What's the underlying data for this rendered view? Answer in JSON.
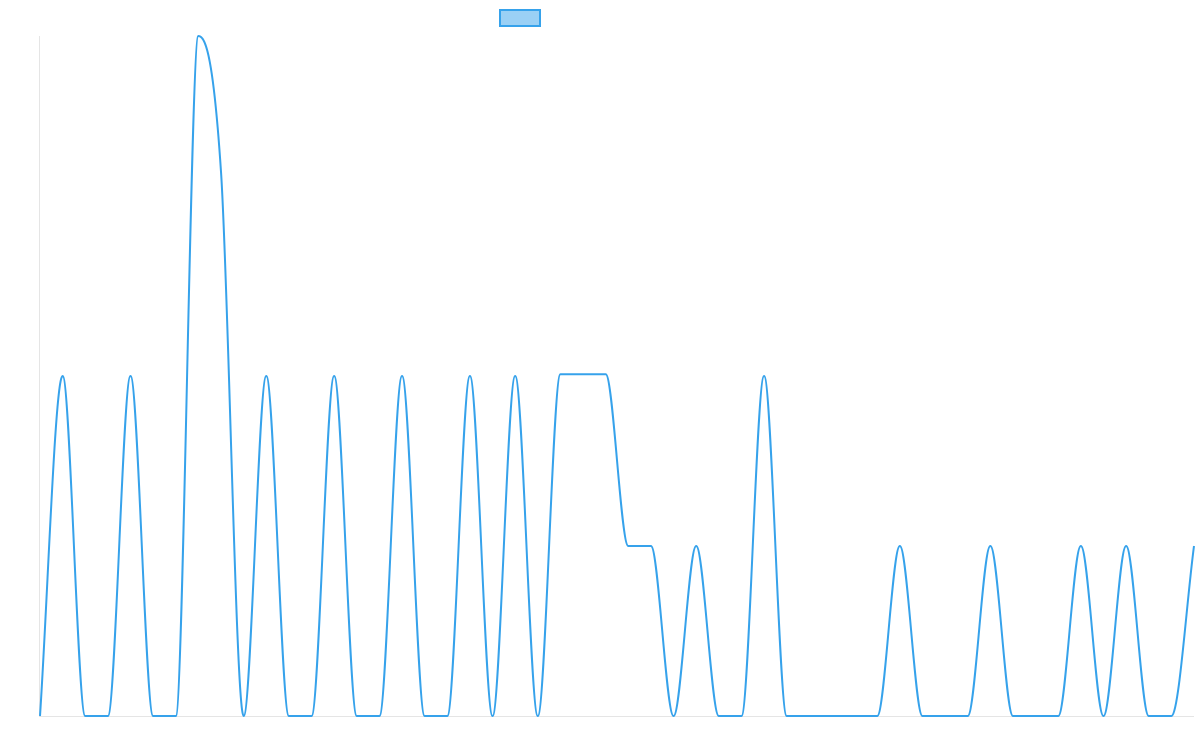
{
  "chart_data": {
    "type": "line",
    "title": "",
    "xlabel": "",
    "ylabel": "",
    "grid": false,
    "legend": {
      "placement": "top-center",
      "entries": [
        {
          "label": ""
        }
      ]
    },
    "ylim": [
      0,
      4
    ],
    "x": [
      0,
      1,
      2,
      3,
      4,
      5,
      6,
      7,
      8,
      9,
      10,
      11,
      12,
      13,
      14,
      15,
      16,
      17,
      18,
      19,
      20,
      21,
      22,
      23,
      24,
      25,
      26,
      27,
      28,
      29,
      30,
      31,
      32,
      33,
      34,
      35,
      36,
      37,
      38,
      39,
      40,
      41,
      42,
      43,
      44,
      45,
      46,
      47,
      48,
      49,
      50,
      51
    ],
    "series": [
      {
        "name": "",
        "color": "#36a2eb",
        "fill": "#9ad0f5",
        "values": [
          0,
          2,
          0,
          0,
          2,
          0,
          0,
          4,
          3.2,
          0,
          2,
          0,
          0,
          2,
          0,
          0,
          2,
          0,
          0,
          2,
          0,
          2,
          0,
          2.01,
          2.01,
          2.01,
          1,
          1,
          0,
          1,
          0,
          0,
          2,
          0,
          0,
          0,
          0,
          0,
          1,
          0,
          0,
          0,
          1,
          0,
          0,
          0,
          1,
          0,
          1,
          0,
          0,
          1
        ]
      }
    ]
  }
}
